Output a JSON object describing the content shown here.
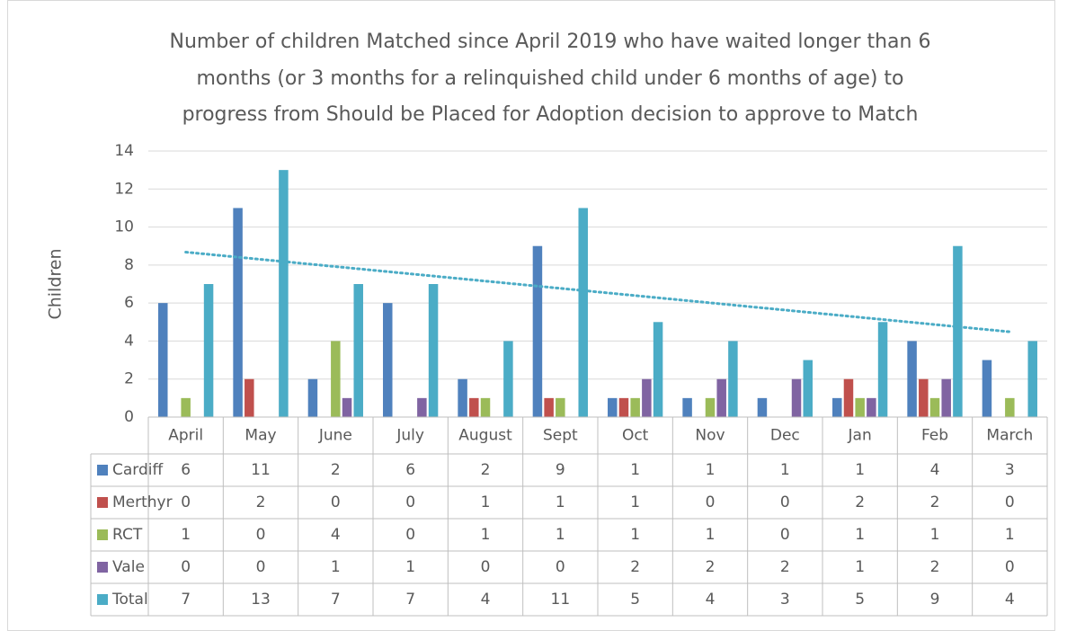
{
  "chart_data": {
    "type": "bar",
    "title": [
      "Number of children Matched since April 2019 who have waited longer than 6",
      "months (or 3 months for a relinquished child under 6 months of age) to",
      "progress from Should be Placed for Adoption decision to approve to Match"
    ],
    "y_label": "Children",
    "categories": [
      "April",
      "May",
      "June",
      "July",
      "August",
      "Sept",
      "Oct",
      "Nov",
      "Dec",
      "Jan",
      "Feb",
      "March"
    ],
    "series": [
      {
        "name": "Cardiff",
        "color": "#4f81bd",
        "values": [
          6,
          11,
          2,
          6,
          2,
          9,
          1,
          1,
          1,
          1,
          4,
          3
        ]
      },
      {
        "name": "Merthyr",
        "color": "#c0504d",
        "values": [
          0,
          2,
          0,
          0,
          1,
          1,
          1,
          0,
          0,
          2,
          2,
          0
        ]
      },
      {
        "name": "RCT",
        "color": "#9bbb59",
        "values": [
          1,
          0,
          4,
          0,
          1,
          1,
          1,
          1,
          0,
          1,
          1,
          1
        ]
      },
      {
        "name": "Vale",
        "color": "#8064a2",
        "values": [
          0,
          0,
          1,
          1,
          0,
          0,
          2,
          2,
          2,
          1,
          2,
          0
        ]
      },
      {
        "name": "Total",
        "color": "#4bacc6",
        "values": [
          7,
          13,
          7,
          7,
          4,
          11,
          5,
          4,
          3,
          5,
          9,
          4
        ]
      }
    ],
    "ylim": [
      0,
      14
    ],
    "yticks": [
      0,
      2,
      4,
      6,
      8,
      10,
      12,
      14
    ],
    "grid": true,
    "data_table": true,
    "trendline": {
      "series": "Total",
      "type": "linear",
      "color": "#4bacc6",
      "style": "dotted"
    }
  }
}
